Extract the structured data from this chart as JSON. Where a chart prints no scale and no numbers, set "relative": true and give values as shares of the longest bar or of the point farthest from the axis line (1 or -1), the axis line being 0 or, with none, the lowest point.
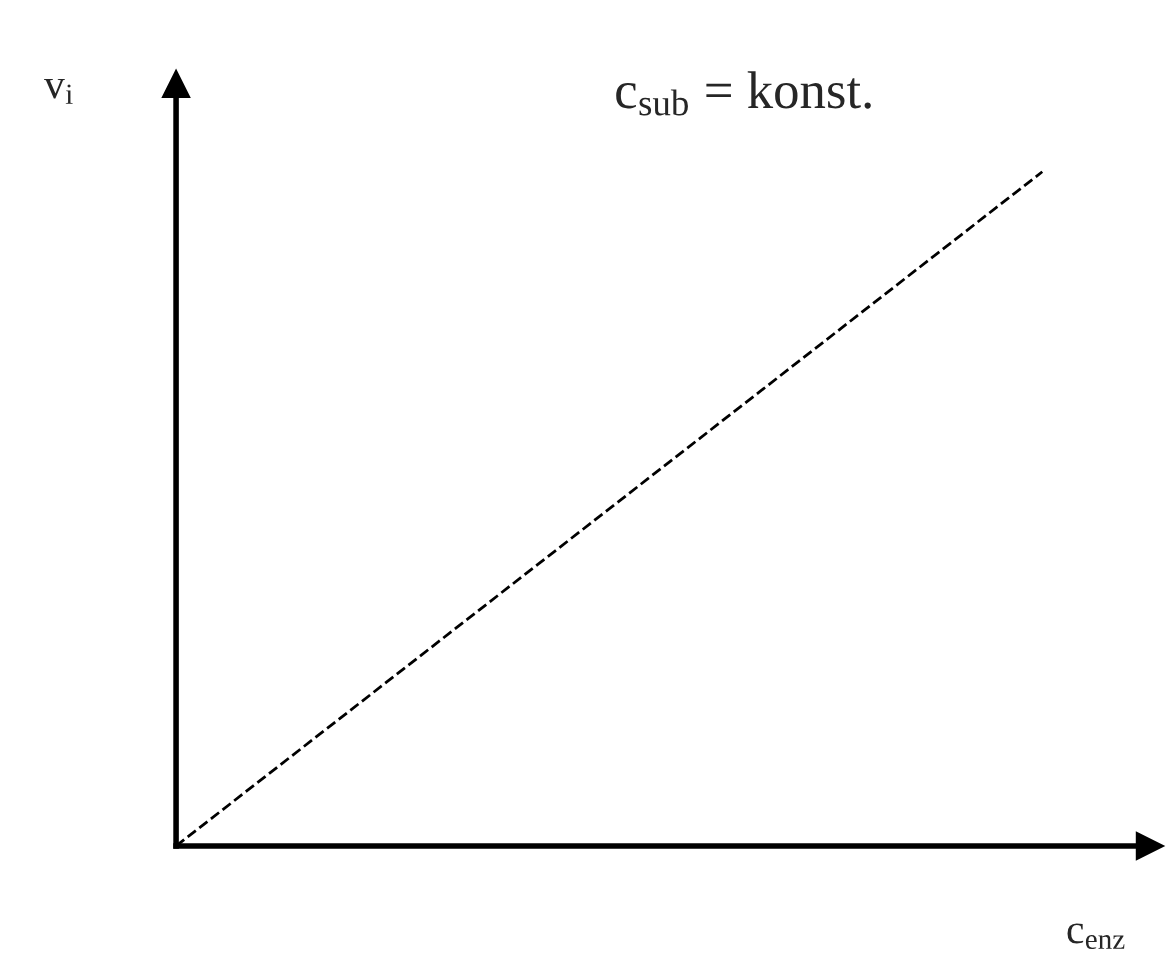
{
  "chart_data": {
    "type": "line",
    "relative": true,
    "xlabel": "c$_{enz}$",
    "ylabel": "v$_{i}$",
    "categories": [
      null,
      null
    ],
    "series": [
      {
        "color": "#000000",
        "values": [
          0,
          1
        ],
        "line_style": "dashed"
      }
    ],
    "annotations": [
      "c$_{sub}$ = konst."
    ],
    "legend": false,
    "marker": "none"
  }
}
